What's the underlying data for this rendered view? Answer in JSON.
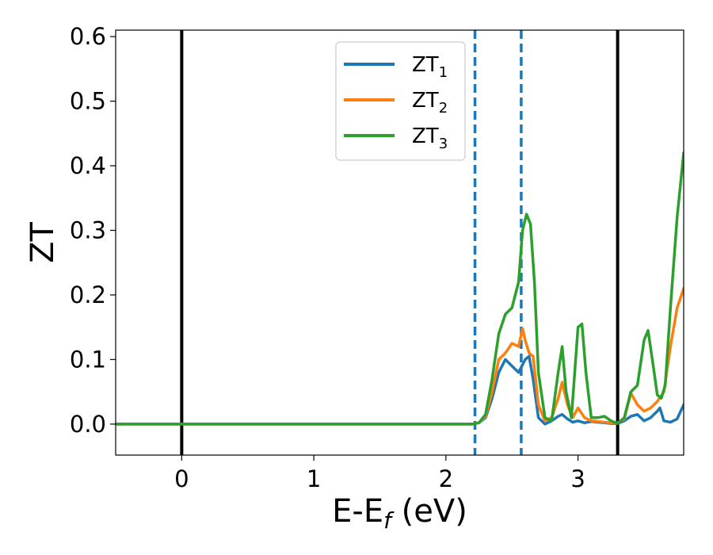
{
  "chart_data": {
    "type": "line",
    "title": "",
    "xlabel": "E-E",
    "xlabel_sub": "f",
    "xlabel_unit": " (eV)",
    "ylabel": "ZT",
    "xlim": [
      -0.5,
      3.8
    ],
    "ylim": [
      -0.048,
      0.61
    ],
    "xticks": [
      0,
      1,
      2,
      3
    ],
    "xtick_labels": [
      "0",
      "1",
      "2",
      "3"
    ],
    "yticks": [
      0.0,
      0.1,
      0.2,
      0.3,
      0.4,
      0.5,
      0.6
    ],
    "ytick_labels": [
      "0.0",
      "0.1",
      "0.2",
      "0.3",
      "0.4",
      "0.5",
      "0.6"
    ],
    "grid": false,
    "legend_position": "top-center",
    "vlines": [
      {
        "x": 0.0,
        "color": "#000000",
        "style": "solid"
      },
      {
        "x": 3.3,
        "color": "#000000",
        "style": "solid"
      },
      {
        "x": 2.22,
        "color": "#1f77b4",
        "style": "dashed"
      },
      {
        "x": 2.57,
        "color": "#1f77b4",
        "style": "dashed"
      }
    ],
    "series": [
      {
        "name": "ZT",
        "sub": "1",
        "color": "#1f77b4",
        "x": [
          -0.5,
          2.2,
          2.25,
          2.3,
          2.35,
          2.4,
          2.45,
          2.5,
          2.55,
          2.6,
          2.63,
          2.66,
          2.7,
          2.75,
          2.8,
          2.85,
          2.88,
          2.92,
          2.96,
          3.0,
          3.05,
          3.1,
          3.15,
          3.2,
          3.25,
          3.3,
          3.35,
          3.4,
          3.45,
          3.5,
          3.55,
          3.6,
          3.62,
          3.65,
          3.7,
          3.75,
          3.8
        ],
        "y": [
          0.0,
          0.0,
          0.002,
          0.01,
          0.04,
          0.08,
          0.1,
          0.09,
          0.08,
          0.1,
          0.105,
          0.07,
          0.01,
          0.0,
          0.005,
          0.012,
          0.015,
          0.008,
          0.003,
          0.005,
          0.002,
          0.004,
          0.003,
          0.002,
          0.001,
          0.001,
          0.005,
          0.012,
          0.015,
          0.005,
          0.01,
          0.02,
          0.025,
          0.005,
          0.003,
          0.008,
          0.03
        ]
      },
      {
        "name": "ZT",
        "sub": "2",
        "color": "#ff7f0e",
        "x": [
          -0.5,
          2.2,
          2.25,
          2.3,
          2.35,
          2.4,
          2.45,
          2.5,
          2.55,
          2.58,
          2.6,
          2.63,
          2.66,
          2.7,
          2.75,
          2.8,
          2.85,
          2.88,
          2.92,
          2.96,
          3.0,
          3.05,
          3.1,
          3.15,
          3.2,
          3.25,
          3.3,
          3.35,
          3.4,
          3.45,
          3.5,
          3.55,
          3.6,
          3.65,
          3.7,
          3.75,
          3.8
        ],
        "y": [
          0.0,
          0.0,
          0.002,
          0.012,
          0.05,
          0.1,
          0.11,
          0.125,
          0.12,
          0.148,
          0.13,
          0.11,
          0.105,
          0.03,
          0.005,
          0.01,
          0.04,
          0.065,
          0.03,
          0.01,
          0.025,
          0.01,
          0.005,
          0.004,
          0.003,
          0.002,
          0.002,
          0.008,
          0.048,
          0.03,
          0.02,
          0.025,
          0.035,
          0.05,
          0.12,
          0.18,
          0.21
        ]
      },
      {
        "name": "ZT",
        "sub": "3",
        "color": "#2ca02c",
        "x": [
          -0.5,
          2.2,
          2.25,
          2.3,
          2.35,
          2.4,
          2.45,
          2.5,
          2.55,
          2.58,
          2.61,
          2.64,
          2.67,
          2.7,
          2.75,
          2.8,
          2.85,
          2.88,
          2.91,
          2.95,
          3.0,
          3.03,
          3.06,
          3.1,
          3.15,
          3.2,
          3.25,
          3.3,
          3.35,
          3.4,
          3.45,
          3.5,
          3.53,
          3.57,
          3.6,
          3.63,
          3.66,
          3.7,
          3.75,
          3.8
        ],
        "y": [
          0.0,
          0.0,
          0.002,
          0.015,
          0.07,
          0.14,
          0.17,
          0.18,
          0.22,
          0.3,
          0.325,
          0.31,
          0.22,
          0.08,
          0.01,
          0.005,
          0.08,
          0.12,
          0.05,
          0.01,
          0.15,
          0.155,
          0.08,
          0.01,
          0.01,
          0.012,
          0.005,
          0.001,
          0.01,
          0.05,
          0.06,
          0.13,
          0.145,
          0.09,
          0.045,
          0.04,
          0.06,
          0.18,
          0.32,
          0.42
        ]
      }
    ]
  }
}
